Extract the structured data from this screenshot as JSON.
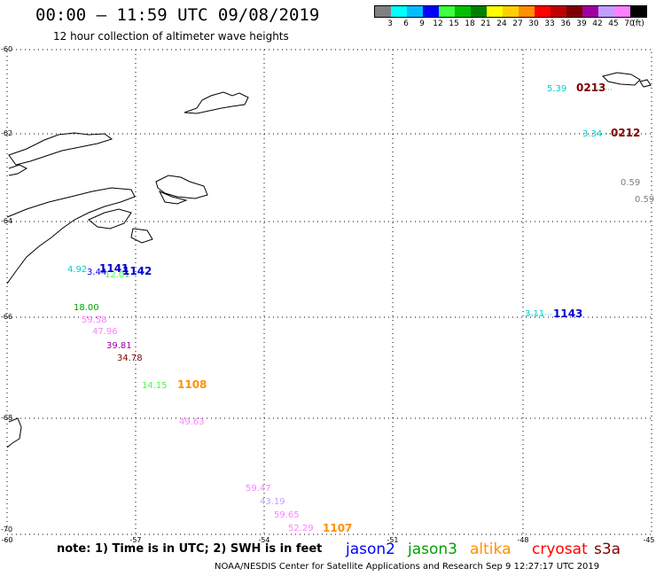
{
  "header": {
    "title": "00:00 – 11:59 UTC 09/08/2019",
    "subtitle": "12 hour collection of altimeter wave heights"
  },
  "color_scale": {
    "colors": [
      "#808080",
      "#00ffff",
      "#00bfff",
      "#0000ff",
      "#40ff40",
      "#00c000",
      "#008000",
      "#ffff00",
      "#ffd000",
      "#ff9000",
      "#ff0000",
      "#c00000",
      "#800000",
      "#a000a0",
      "#c0a0ff",
      "#ff80ff",
      "#000000"
    ],
    "labels": [
      "3",
      "6",
      "9",
      "12",
      "15",
      "18",
      "21",
      "24",
      "27",
      "30",
      "33",
      "36",
      "39",
      "42",
      "45",
      "70",
      "(ft)"
    ]
  },
  "axes": {
    "lat_labels": [
      "-60",
      "-62",
      "-64",
      "-66",
      "-68",
      "-70"
    ],
    "lon_labels": [
      "-60",
      "-57",
      "-54",
      "-51",
      "-48",
      "-45"
    ]
  },
  "observations": [
    {
      "text": "5.39",
      "color": "#00cccc"
    },
    {
      "text": "3.34",
      "color": "#00cccc"
    },
    {
      "text": "0.59",
      "color": "#808080"
    },
    {
      "text": "0.59",
      "color": "#808080"
    },
    {
      "text": "4.92",
      "color": "#00cccc"
    },
    {
      "text": "3.44",
      "color": "#0000ff"
    },
    {
      "text": "12.01",
      "color": "#40ff40"
    },
    {
      "text": "18.00",
      "color": "#00a000"
    },
    {
      "text": "59.58",
      "color": "#ff80ff"
    },
    {
      "text": "47.96",
      "color": "#ff80ff"
    },
    {
      "text": "39.81",
      "color": "#a000a0"
    },
    {
      "text": "34.78",
      "color": "#800000"
    },
    {
      "text": "14.15",
      "color": "#40ff40"
    },
    {
      "text": "3.11",
      "color": "#00cccc"
    },
    {
      "text": "49.63",
      "color": "#ff80ff"
    },
    {
      "text": "59.47",
      "color": "#ff80ff"
    },
    {
      "text": "43.19",
      "color": "#c0a0ff"
    },
    {
      "text": "59.65",
      "color": "#ff80ff"
    },
    {
      "text": "52.29",
      "color": "#ff80ff"
    }
  ],
  "pass_labels": [
    {
      "text": "0213",
      "color": "#800000"
    },
    {
      "text": "0212",
      "color": "#800000"
    },
    {
      "text": "1141",
      "color": "#0000cc"
    },
    {
      "text": "1142",
      "color": "#0000cc"
    },
    {
      "text": "1143",
      "color": "#0000cc"
    },
    {
      "text": "1108",
      "color": "#ff9000"
    },
    {
      "text": "1107",
      "color": "#ff9000"
    }
  ],
  "footer": {
    "note": "note: 1) Time is in UTC; 2) SWH is in feet",
    "satellites": [
      {
        "name": "jason2",
        "color": "#0000ff"
      },
      {
        "name": "jason3",
        "color": "#00a000"
      },
      {
        "name": "altika",
        "color": "#ff9000"
      },
      {
        "name": "cryosat",
        "color": "#ff0000"
      },
      {
        "name": "s3a",
        "color": "#800000"
      }
    ],
    "credit": "NOAA/NESDIS Center for Satellite Applications and Research    Sep  9 12:27:17 UTC 2019"
  }
}
